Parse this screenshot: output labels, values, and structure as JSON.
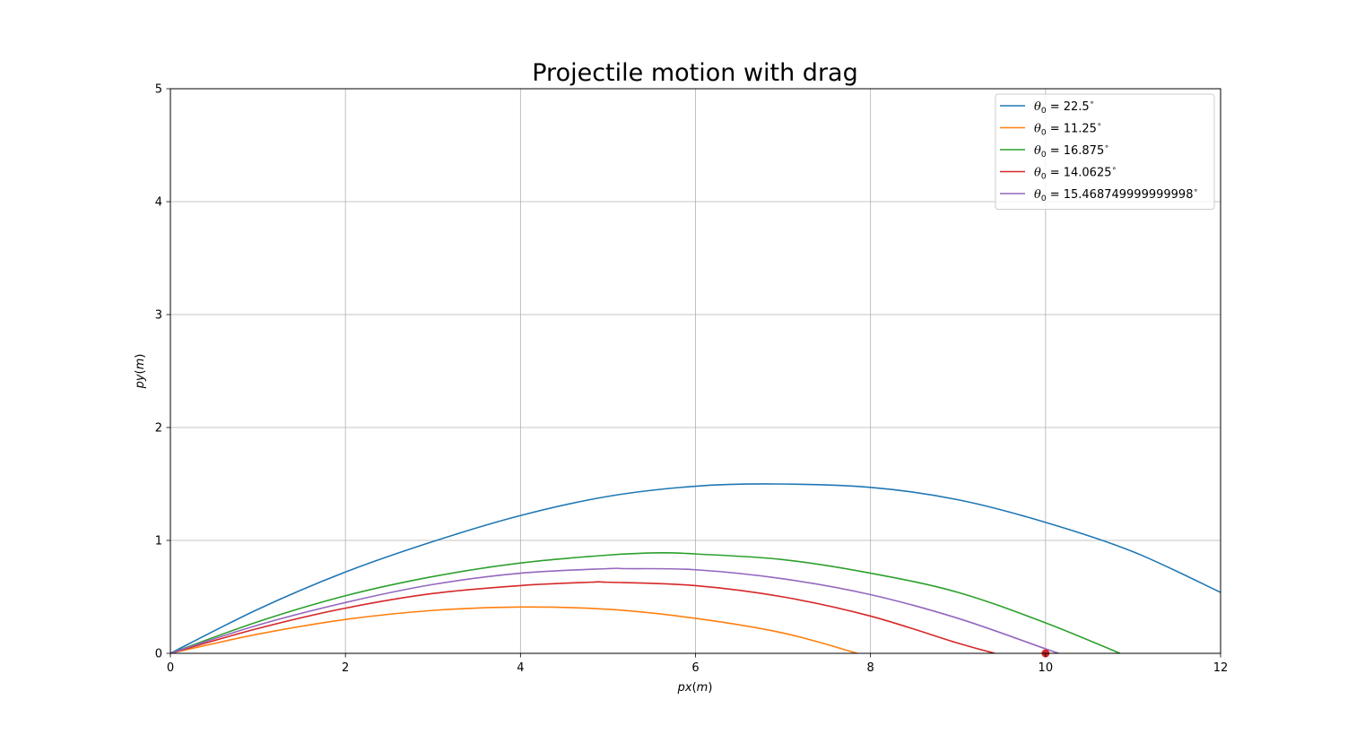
{
  "chart_data": {
    "type": "line",
    "title": "Projectile motion with drag",
    "xlabel_base": "px",
    "xlabel_unit": "(m)",
    "ylabel_base": "py",
    "ylabel_unit": "(m)",
    "xlim": [
      0,
      12
    ],
    "ylim": [
      0,
      5
    ],
    "xticks": [
      0,
      2,
      4,
      6,
      8,
      10,
      12
    ],
    "yticks": [
      0,
      1,
      2,
      3,
      4,
      5
    ],
    "grid": true,
    "legend_placement": "top-right",
    "legend_symbol": "θ",
    "legend_subscript": "0",
    "legend_degree": "∘",
    "series": [
      {
        "name": "22.5",
        "color": "#1f77b4",
        "x": [
          0,
          1,
          2,
          3,
          4,
          5,
          6,
          6.9,
          8,
          9,
          10,
          11,
          12
        ],
        "y": [
          0,
          0.39,
          0.72,
          0.99,
          1.22,
          1.39,
          1.48,
          1.5,
          1.47,
          1.36,
          1.16,
          0.9,
          0.54
        ]
      },
      {
        "name": "11.25",
        "color": "#ff7f0e",
        "x": [
          0,
          1,
          2,
          3,
          4,
          5,
          6,
          7,
          7.85
        ],
        "y": [
          0,
          0.17,
          0.3,
          0.38,
          0.41,
          0.39,
          0.31,
          0.18,
          0
        ]
      },
      {
        "name": "16.875",
        "color": "#2ca02c",
        "x": [
          0,
          1,
          2,
          3,
          4,
          5,
          5.6,
          6,
          7,
          8,
          9,
          10,
          10.85
        ],
        "y": [
          0,
          0.28,
          0.51,
          0.68,
          0.8,
          0.87,
          0.89,
          0.88,
          0.83,
          0.71,
          0.54,
          0.27,
          0
        ]
      },
      {
        "name": "14.0625",
        "color": "#d62728",
        "x": [
          0,
          1,
          2,
          3,
          4,
          4.8,
          5,
          6,
          7,
          8,
          9,
          9.42
        ],
        "y": [
          0,
          0.22,
          0.4,
          0.53,
          0.6,
          0.63,
          0.63,
          0.6,
          0.5,
          0.33,
          0.09,
          0
        ]
      },
      {
        "name": "15.468749999999998",
        "color": "#9467bd",
        "x": [
          0,
          1,
          2,
          3,
          4,
          5,
          5.2,
          6,
          7,
          8,
          9,
          10,
          10.15
        ],
        "y": [
          0,
          0.25,
          0.45,
          0.61,
          0.71,
          0.75,
          0.75,
          0.74,
          0.66,
          0.52,
          0.31,
          0.04,
          0
        ]
      }
    ],
    "markers": [
      {
        "x": 10,
        "y": 0,
        "color": "#d62728"
      }
    ]
  }
}
